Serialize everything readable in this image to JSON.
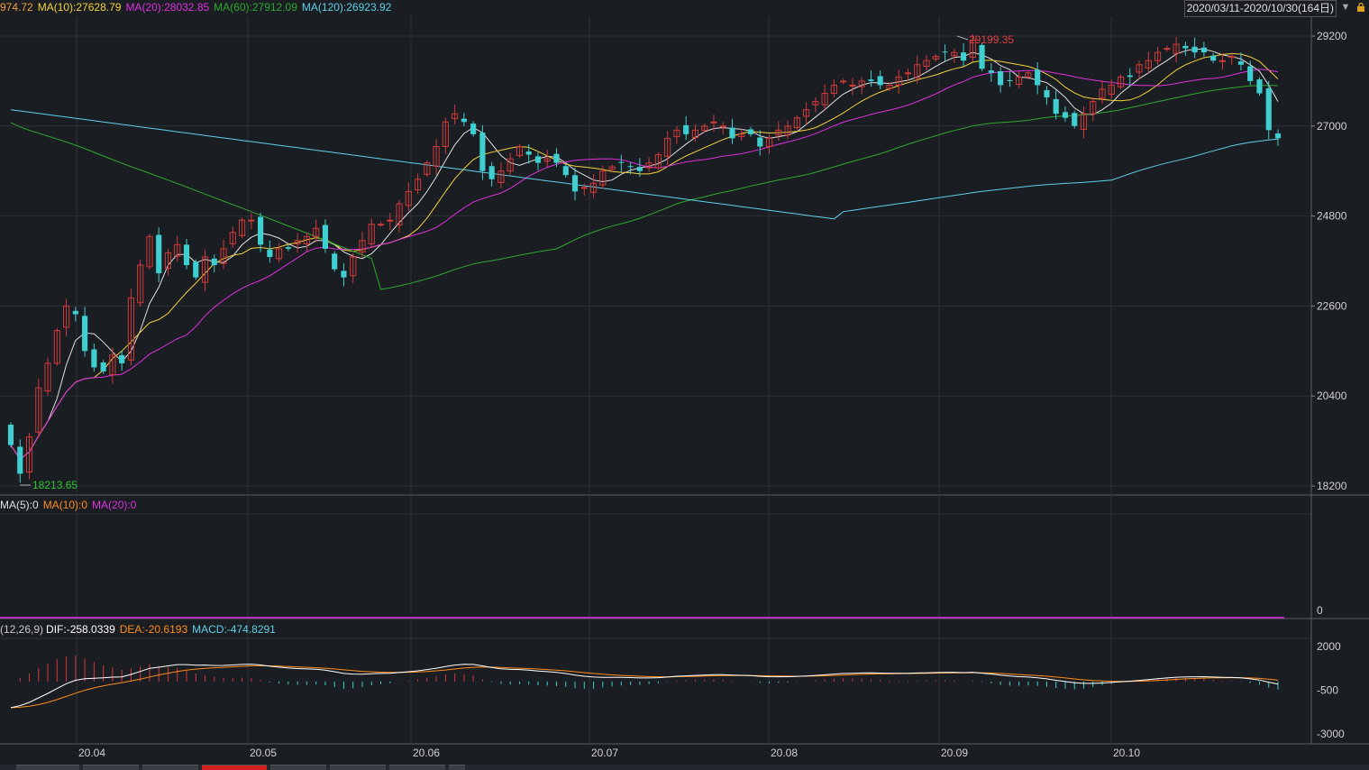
{
  "header": {
    "ma5": "974.72",
    "ma10": "MA(10):27628.79",
    "ma20": "MA(20):28032.85",
    "ma60": "MA(60):27912.09",
    "ma120": "MA(120):26923.92",
    "date_range": "2020/03/11-2020/10/30(164日)"
  },
  "colors": {
    "background": "#1a1d22",
    "grid": "#2e3238",
    "up": "#d23a3a",
    "down": "#3fcfd0",
    "ma5": "#e0e0e0",
    "ma10": "#f2d23b",
    "ma20": "#e030e0",
    "ma60": "#2ea82e",
    "ma120": "#5fd0e8",
    "dea": "#ff8c1a",
    "dif": "#ffffff"
  },
  "volume_panel": {
    "legend": [
      "MA(5):0",
      "MA(10):0",
      "MA(20):0"
    ],
    "axis_label": "0"
  },
  "macd_panel": {
    "legend": "(12,26,9)",
    "dif": "DIF:-258.0339",
    "dea": "DEA:-20.6193",
    "macd": "MACD:-474.8291",
    "ticks": [
      "2000",
      "-500",
      "-3000"
    ]
  },
  "chart_data": {
    "type": "candlestick",
    "price_ticks": [
      "29200",
      "27000",
      "24800",
      "22600",
      "20400",
      "18200"
    ],
    "ylim": [
      18200,
      29200
    ],
    "x_labels": [
      "20.04",
      "20.05",
      "20.06",
      "20.07",
      "20.08",
      "20.09",
      "20.10"
    ],
    "max_label": "29199.35",
    "min_label": "18213.65",
    "closes": [
      19200,
      18500,
      19400,
      20600,
      21200,
      22000,
      22600,
      22400,
      21500,
      21100,
      21000,
      21400,
      21200,
      22800,
      23600,
      24300,
      23400,
      23900,
      24100,
      23600,
      23300,
      23800,
      23600,
      24000,
      24400,
      24700,
      24700,
      24100,
      23800,
      24000,
      24000,
      24200,
      24300,
      24500,
      24000,
      23500,
      23300,
      23800,
      24200,
      24600,
      24600,
      24700,
      25100,
      25400,
      25700,
      26100,
      26500,
      27100,
      27300,
      27100,
      26800,
      25900,
      25700,
      25900,
      26200,
      26500,
      26300,
      26100,
      26200,
      26100,
      25800,
      25400,
      25500,
      25600,
      25900,
      26000,
      26100,
      26000,
      25900,
      26100,
      26300,
      26700,
      26900,
      26800,
      26900,
      27000,
      27100,
      27000,
      26700,
      26800,
      26800,
      26500,
      26700,
      26900,
      27000,
      27200,
      27400,
      27600,
      27800,
      28000,
      28100,
      28000,
      28100,
      28100,
      28000,
      28000,
      28200,
      28300,
      28500,
      28600,
      28700,
      28800,
      28800,
      28600,
      29100,
      28400,
      28300,
      28000,
      28100,
      28200,
      28300,
      28000,
      27700,
      27300,
      27200,
      27000,
      27300,
      27600,
      27900,
      28000,
      28200,
      28200,
      28500,
      28600,
      28800,
      28900,
      29000,
      28900,
      28800,
      28800,
      28600,
      28600,
      28700,
      28500,
      28100,
      27800,
      26900,
      26700
    ]
  }
}
